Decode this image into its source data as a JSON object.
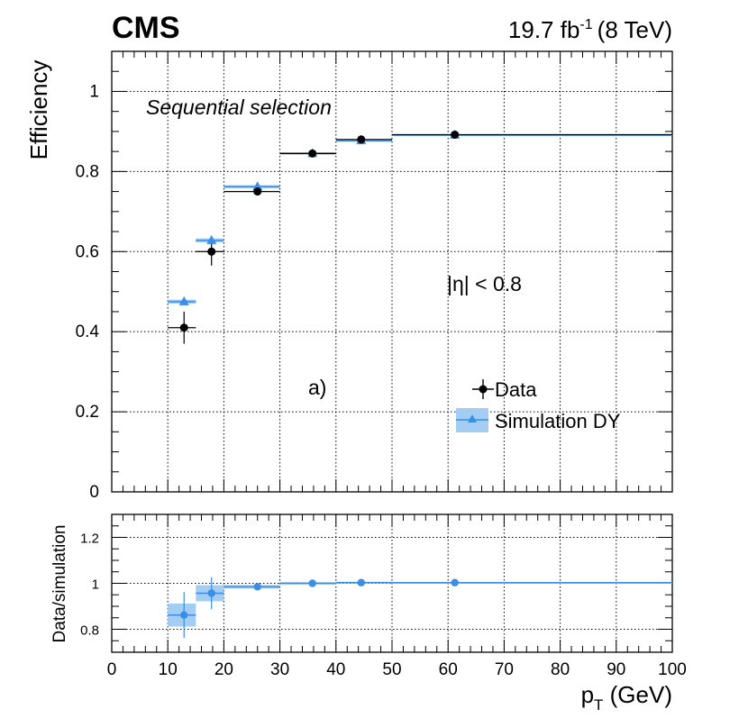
{
  "header": {
    "experiment": "CMS",
    "lumi_value": "19.7 fb",
    "lumi_exponent": "-1",
    "energy": "(8 TeV)"
  },
  "chart_data": [
    {
      "type": "scatter",
      "panel": "efficiency",
      "ylabel": "Efficiency",
      "xlim": [
        0,
        100
      ],
      "ylim": [
        0,
        1.1
      ],
      "grid": true,
      "x_bins": [
        [
          10,
          15
        ],
        [
          15,
          20
        ],
        [
          20,
          30
        ],
        [
          30,
          40
        ],
        [
          40,
          50
        ],
        [
          50,
          100
        ]
      ],
      "x_centers": [
        12.9,
        17.8,
        26.0,
        35.8,
        44.5,
        61.2
      ],
      "y_ticks": [
        0,
        0.2,
        0.4,
        0.6,
        0.8,
        1
      ],
      "y_tick_labels": [
        "0",
        "0.2",
        "0.4",
        "0.6",
        "0.8",
        "1"
      ],
      "series": [
        {
          "name": "Data",
          "color": "#000000",
          "values": [
            0.41,
            0.6,
            0.75,
            0.845,
            0.88,
            0.892
          ],
          "errors": [
            0.04,
            0.035,
            0.007,
            0.005,
            0.004,
            0.003
          ]
        },
        {
          "name": "Simulation DY",
          "color": "#3a8ee6",
          "values": [
            0.475,
            0.628,
            0.762,
            0.845,
            0.877,
            0.891
          ],
          "errors": [
            0.005,
            0.005,
            0.004,
            0.003,
            0.003,
            0.002
          ]
        }
      ],
      "annotations": {
        "selection": "Sequential selection",
        "eta_cut": "|η| <  0.8",
        "panel_tag": "a)"
      },
      "legend": {
        "position": "bottom-right",
        "entries": [
          "Data",
          "Simulation DY"
        ]
      }
    },
    {
      "type": "scatter",
      "panel": "ratio",
      "ylabel": "Data/simulation",
      "xlabel": "p",
      "xlabel_sub": "T",
      "xlabel_unit": " (GeV)",
      "xlim": [
        0,
        100
      ],
      "ylim": [
        0.7,
        1.3
      ],
      "grid": true,
      "x_ticks": [
        0,
        10,
        20,
        30,
        40,
        50,
        60,
        70,
        80,
        90,
        100
      ],
      "x_tick_labels": [
        "0",
        "10",
        "20",
        "30",
        "40",
        "50",
        "60",
        "70",
        "80",
        "90",
        "100"
      ],
      "y_ticks": [
        0.8,
        1,
        1.2
      ],
      "y_tick_labels": [
        "0.8",
        "1",
        "1.2"
      ],
      "x_bins": [
        [
          10,
          15
        ],
        [
          15,
          20
        ],
        [
          20,
          30
        ],
        [
          30,
          40
        ],
        [
          40,
          50
        ],
        [
          50,
          100
        ]
      ],
      "x_centers": [
        12.9,
        17.8,
        26.0,
        35.8,
        44.5,
        61.2
      ],
      "series": [
        {
          "name": "Data/simulation",
          "color": "#3a8ee6",
          "values": [
            0.862,
            0.957,
            0.985,
            1.0,
            1.003,
            1.003
          ],
          "errors": [
            0.1,
            0.07,
            0.012,
            0.006,
            0.005,
            0.004
          ],
          "band_halfwidth": [
            0.05,
            0.035,
            0.008,
            0.005,
            0.004,
            0.003
          ]
        }
      ]
    }
  ]
}
